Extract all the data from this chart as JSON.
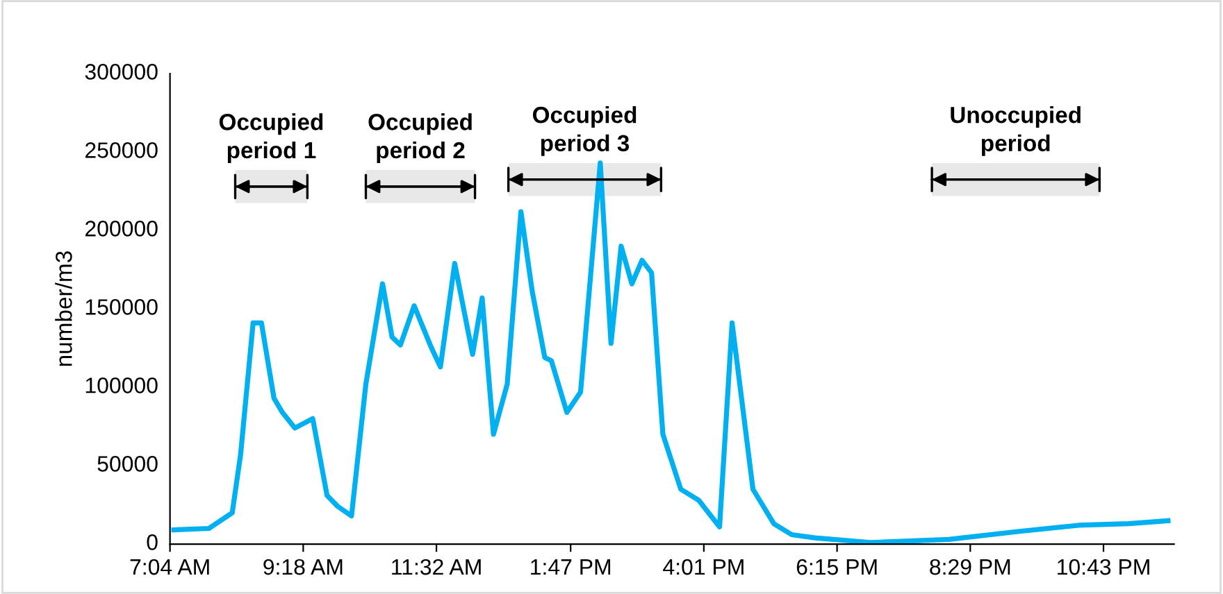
{
  "chart_data": {
    "type": "line",
    "ylabel": "number/m3",
    "x": [
      7.09,
      7.72,
      8.11,
      8.25,
      8.46,
      8.6,
      8.81,
      8.95,
      9.16,
      9.46,
      9.7,
      9.88,
      10.11,
      10.35,
      10.63,
      10.79,
      10.93,
      11.16,
      11.44,
      11.6,
      11.84,
      12.14,
      12.3,
      12.49,
      12.72,
      12.95,
      13.14,
      13.35,
      13.46,
      13.72,
      13.95,
      14.28,
      14.46,
      14.63,
      14.81,
      14.98,
      15.14,
      15.33,
      15.63,
      15.93,
      16.28,
      16.49,
      16.84,
      17.19,
      17.49,
      17.88,
      18.81,
      20.12,
      21.28,
      22.3,
      23.14,
      23.84
    ],
    "series": [
      {
        "color": "#00b0f0",
        "values": [
          9000,
          10000,
          20000,
          57000,
          141000,
          141000,
          93000,
          84000,
          74000,
          80000,
          31000,
          24000,
          18000,
          102000,
          166000,
          132000,
          127000,
          152000,
          126000,
          113000,
          179000,
          121000,
          157000,
          70000,
          102000,
          212000,
          161000,
          119000,
          117000,
          84000,
          97000,
          243000,
          128000,
          190000,
          166000,
          181000,
          173000,
          70000,
          35000,
          28000,
          11000,
          141000,
          35000,
          13000,
          6000,
          4000,
          1000,
          3000,
          8000,
          12000,
          13000,
          15000
        ]
      }
    ],
    "xlim": [
      7.0667,
      23.9
    ],
    "xticks": [
      {
        "value": 7.0667,
        "label": "7:04 AM"
      },
      {
        "value": 9.3,
        "label": "9:18 AM"
      },
      {
        "value": 11.5333,
        "label": "11:32 AM"
      },
      {
        "value": 13.7833,
        "label": "1:47 PM"
      },
      {
        "value": 16.0167,
        "label": "4:01 PM"
      },
      {
        "value": 18.25,
        "label": "6:15 PM"
      },
      {
        "value": 20.4833,
        "label": "8:29 PM"
      },
      {
        "value": 22.7167,
        "label": "10:43 PM"
      }
    ],
    "ylim": [
      0,
      300000
    ],
    "yticks": [
      0,
      50000,
      100000,
      150000,
      200000,
      250000,
      300000
    ],
    "bands": [
      {
        "axis": "x",
        "from": 8.16,
        "to": 9.37,
        "label": "Occupied\nperiod 1",
        "color": "#e8e8e8"
      },
      {
        "axis": "x",
        "from": 10.35,
        "to": 12.18,
        "label": "Occupied\nperiod 2",
        "color": "#e8e8e8"
      },
      {
        "axis": "x",
        "from": 12.74,
        "to": 15.3,
        "label": "Occupied\nperiod 3",
        "color": "#e8e8e8"
      },
      {
        "axis": "x",
        "from": 19.84,
        "to": 22.65,
        "label": "Unoccupied\nperiod",
        "color": "#e8e8e8"
      }
    ],
    "grid": false,
    "legend": false,
    "marker": "none",
    "line_style": "solid"
  }
}
